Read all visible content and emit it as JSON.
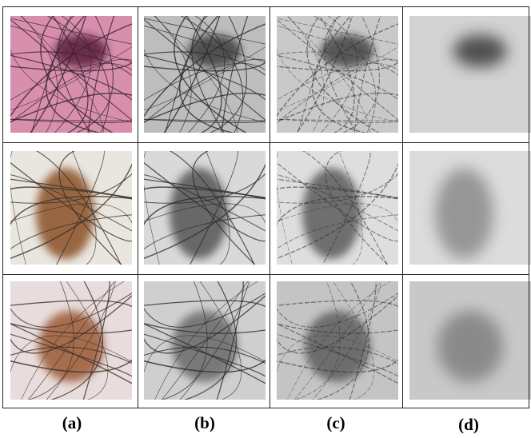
{
  "panel_labels": [
    "(a)",
    "(b)",
    "(c)",
    "(d)"
  ]
}
